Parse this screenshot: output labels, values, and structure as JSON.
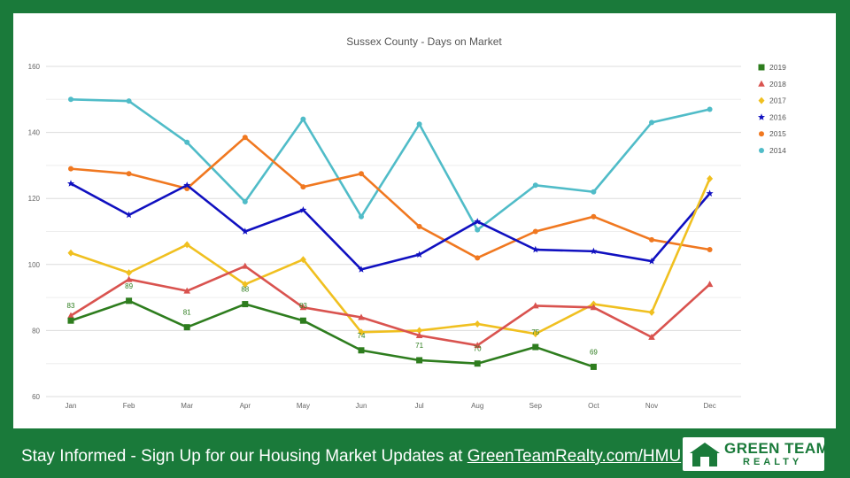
{
  "footer": {
    "text": "Stay Informed - Sign Up for our Housing Market Updates at ",
    "link": "GreenTeamRealty.com/HMU"
  },
  "logo": {
    "line1": "GREEN TEAM",
    "line2": "REALTY"
  },
  "colors": {
    "background": "#1a7a3a",
    "panel": "#ffffff"
  },
  "chart_data": {
    "type": "line",
    "title": "Sussex County - Days on Market",
    "xlabel": "",
    "ylabel": "",
    "categories": [
      "Jan",
      "Feb",
      "Mar",
      "Apr",
      "May",
      "Jun",
      "Jul",
      "Aug",
      "Sep",
      "Oct",
      "Nov",
      "Dec"
    ],
    "ylim": [
      60,
      160
    ],
    "yticks": [
      60,
      80,
      100,
      120,
      140,
      160
    ],
    "grid": true,
    "legend_position": "right",
    "series": [
      {
        "name": "2019",
        "color": "#2e7d1e",
        "marker": "square",
        "labeled": true,
        "values": [
          83,
          89,
          81,
          88,
          83,
          74,
          71,
          70,
          75,
          69,
          null,
          null
        ]
      },
      {
        "name": "2018",
        "color": "#d9534f",
        "marker": "triangle",
        "values": [
          84.5,
          95.5,
          92,
          99.5,
          87,
          84,
          78.5,
          75.5,
          87.5,
          87,
          78,
          94
        ]
      },
      {
        "name": "2017",
        "color": "#f0c020",
        "marker": "diamond",
        "values": [
          103.5,
          97.5,
          106,
          94,
          101.5,
          79.5,
          80,
          82,
          79,
          88,
          85.5,
          126
        ]
      },
      {
        "name": "2016",
        "color": "#1010c0",
        "marker": "star",
        "values": [
          124.5,
          115,
          124,
          110,
          116.5,
          98.5,
          103,
          113,
          104.5,
          104,
          101,
          121.5
        ]
      },
      {
        "name": "2015",
        "color": "#f07820",
        "marker": "circle",
        "values": [
          129,
          127.5,
          123,
          138.5,
          123.5,
          127.5,
          111.5,
          102,
          110,
          114.5,
          107.5,
          104.5
        ]
      },
      {
        "name": "2014",
        "color": "#50bcc8",
        "marker": "circle",
        "values": [
          150,
          149.5,
          137,
          119,
          144,
          114.5,
          142.5,
          110.5,
          124,
          122,
          143,
          147
        ]
      }
    ]
  }
}
